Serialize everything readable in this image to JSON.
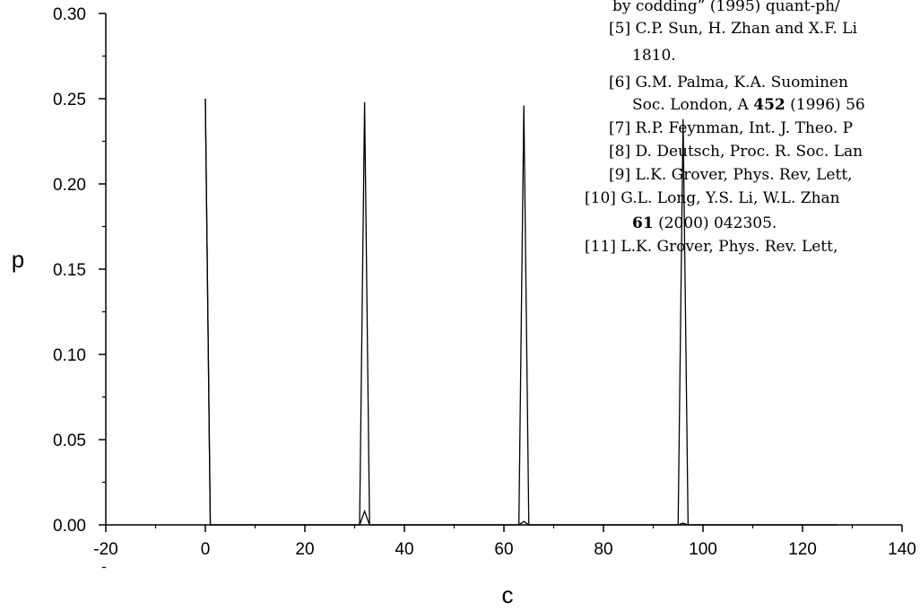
{
  "chart_data": {
    "type": "line",
    "xlabel": "c",
    "ylabel": "p",
    "xlim": [
      -20,
      140
    ],
    "ylim": [
      0,
      0.3
    ],
    "x_ticks": [
      "-20",
      "0",
      "20",
      "40",
      "60",
      "80",
      "100",
      "120",
      "140"
    ],
    "y_ticks": [
      "0.00",
      "0.05",
      "0.10",
      "0.15",
      "0.20",
      "0.25",
      "0.30"
    ],
    "grid": false,
    "series": [
      {
        "points": [
          [
            0,
            0.25
          ],
          [
            1,
            0.0
          ],
          [
            31,
            0.0
          ],
          [
            32,
            0.008
          ],
          [
            33,
            0.0
          ],
          [
            63,
            0.0
          ],
          [
            64,
            0.002
          ],
          [
            65,
            0.0
          ],
          [
            95,
            0.0
          ],
          [
            96,
            0.001
          ],
          [
            97,
            0.0
          ],
          [
            127,
            0.0
          ]
        ]
      },
      {
        "points": [
          [
            0,
            0.25
          ],
          [
            1,
            0.0
          ],
          [
            31,
            0.0
          ],
          [
            32,
            0.248
          ],
          [
            33,
            0.0
          ],
          [
            63,
            0.0
          ],
          [
            64,
            0.246
          ],
          [
            65,
            0.0
          ],
          [
            95,
            0.0
          ],
          [
            96,
            0.238
          ],
          [
            97,
            0.0
          ],
          [
            127,
            0.0
          ]
        ]
      }
    ]
  },
  "background_text": {
    "lines": [
      [
        {
          "t": "by codding” (1995) quant-ph/"
        }
      ],
      [
        {
          "t": "[5] C.P. Sun, H. Zhan and X.F. Li"
        }
      ],
      [
        {
          "t": "1810."
        }
      ],
      [
        {
          "t": "[6] G.M. Palma, K.A. Suominen"
        }
      ],
      [
        {
          "t": "Soc. London, A "
        },
        {
          "t": "452",
          "b": true
        },
        {
          "t": " (1996) 56"
        }
      ],
      [
        {
          "t": "[7] R.P. Feynman, Int. J. Theo. P"
        }
      ],
      [
        {
          "t": "[8] D. Deutsch, Proc. R. Soc. Lan"
        }
      ],
      [
        {
          "t": "[9] L.K. Grover, Phys. Rev, Lett,"
        }
      ],
      [
        {
          "t": "[10] G.L. Long, Y.S. Li, W.L. Zhan"
        }
      ],
      [
        {
          "t": "61",
          "b": true
        },
        {
          "t": " (2000) 042305."
        }
      ],
      [
        {
          "t": "[11] L.K. Grover, Phys. Rev. Lett,"
        }
      ]
    ]
  }
}
